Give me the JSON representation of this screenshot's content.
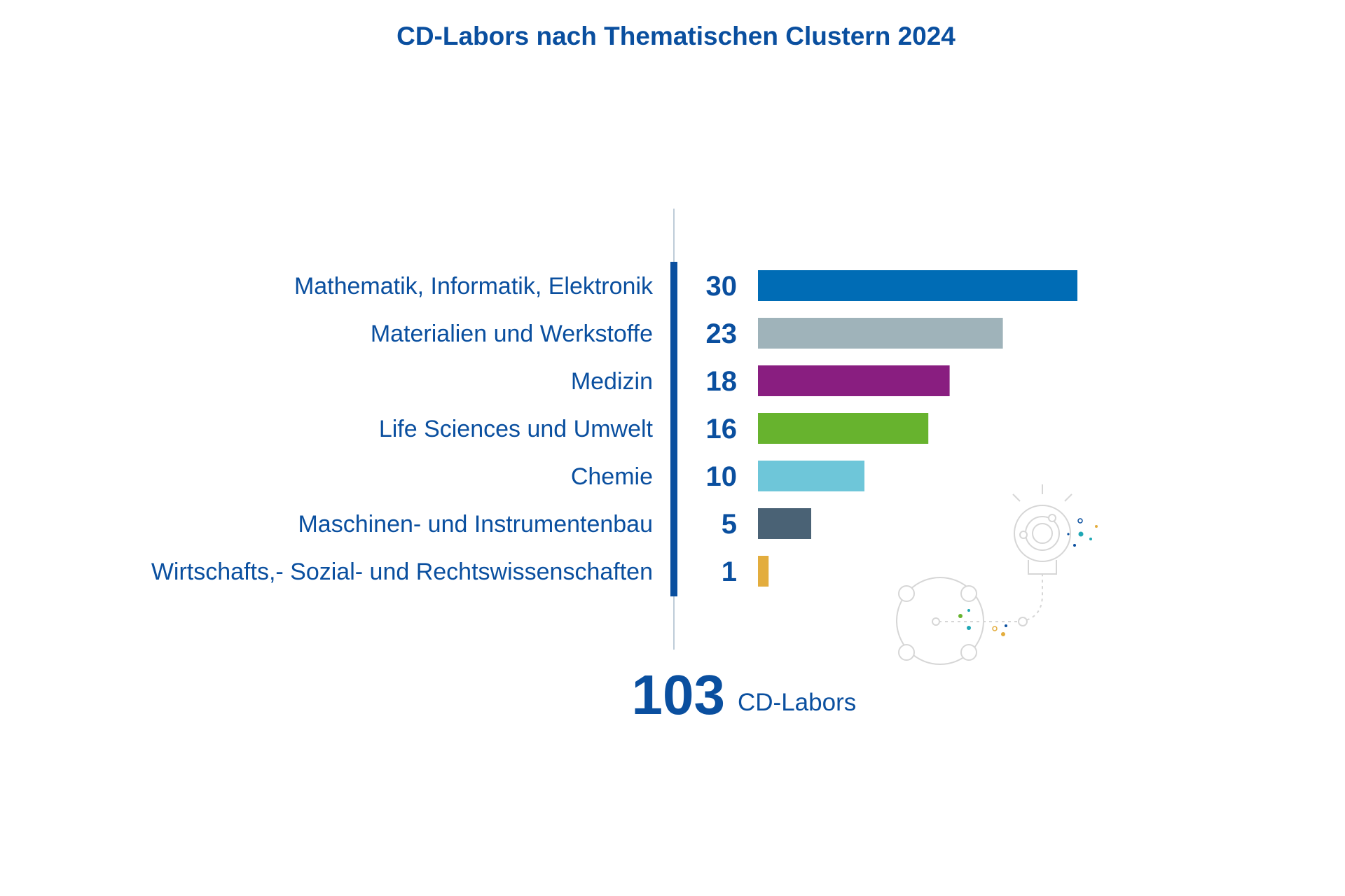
{
  "chart_data": {
    "type": "bar",
    "orientation": "horizontal",
    "title": "CD-Labors nach Thematischen Clustern 2024",
    "categories": [
      "Mathematik, Informatik, Elektronik",
      "Materialien und Werkstoffe",
      "Medizin",
      "Life Sciences und Umwelt",
      "Chemie",
      "Maschinen- und Instrumentenbau",
      "Wirtschafts,- Sozial- und Rechtswissenschaften"
    ],
    "values": [
      30,
      23,
      18,
      16,
      10,
      5,
      1
    ],
    "value_labels": [
      "30",
      "23",
      "18",
      "16",
      "10",
      "5",
      "1"
    ],
    "colors": [
      "#006cb5",
      "#9fb3ba",
      "#891e80",
      "#67b32e",
      "#6ec6d9",
      "#4a6275",
      "#e3ad3e"
    ],
    "total": {
      "value": "103",
      "unit": "CD-Labors"
    },
    "xlim": [
      0,
      30
    ],
    "grid": false,
    "legend": "none"
  },
  "colors": {
    "text": "#0a4f9f",
    "axis_bar": "#0a4f9f",
    "axis_line": "#a9bccc",
    "decoration": "#d6d6d6"
  },
  "decoration": {
    "icon": "lightbulb-network-icon"
  }
}
